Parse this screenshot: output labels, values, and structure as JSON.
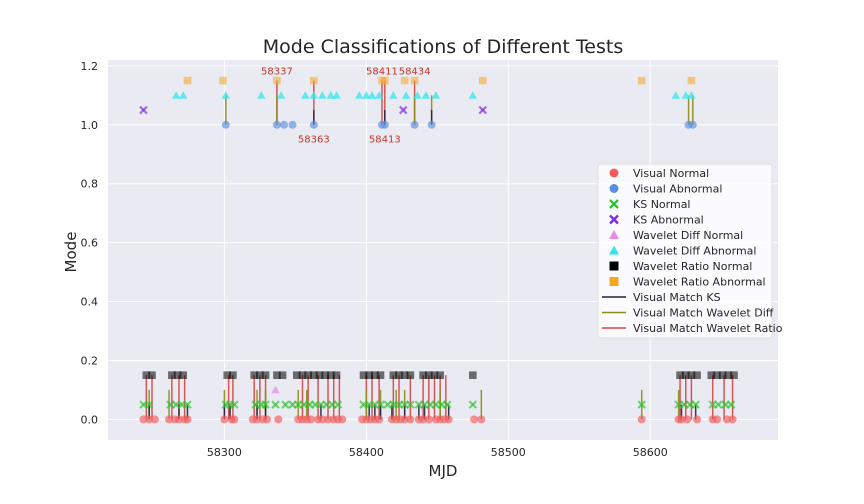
{
  "chart_data": {
    "type": "scatter",
    "title": "Mode Classifications of Different Tests",
    "xlabel": "MJD",
    "ylabel": "Mode",
    "xlim": [
      58218,
      58690
    ],
    "ylim": [
      -0.07,
      1.22
    ],
    "xticks": [
      58300,
      58400,
      58500,
      58600
    ],
    "yticks": [
      0.0,
      0.2,
      0.4,
      0.6,
      0.8,
      1.0,
      1.2
    ],
    "ytick_labels": [
      "0.0",
      "0.2",
      "0.4",
      "0.6",
      "0.8",
      "1.0",
      "1.2"
    ],
    "grid": true,
    "legend_position": "center-right",
    "colors": {
      "plot_bg": "#eaeaf2",
      "grid": "#ffffff",
      "visual_normal": "#f15c5c",
      "visual_abnormal": "#5b8fde",
      "ks_normal": "#2ec42e",
      "ks_abnormal": "#7a2ae0",
      "wavelet_diff_normal": "#e58ce6",
      "wavelet_diff_abnormal": "#33e6ee",
      "wavelet_ratio_normal": "#000000",
      "wavelet_ratio_abnormal": "#f5a623",
      "match_ks": "#222244",
      "match_wd": "#8c8c1a",
      "match_wr": "#d24848"
    },
    "legend": [
      {
        "label": "Visual Normal",
        "marker": "circle",
        "color": "#f15c5c"
      },
      {
        "label": "Visual Abnormal",
        "marker": "circle",
        "color": "#5b8fde"
      },
      {
        "label": "KS Normal",
        "marker": "x",
        "color": "#2ec42e"
      },
      {
        "label": "KS Abnormal",
        "marker": "x",
        "color": "#7a2ae0"
      },
      {
        "label": "Wavelet Diff Normal",
        "marker": "triangle",
        "color": "#e58ce6"
      },
      {
        "label": "Wavelet Diff Abnormal",
        "marker": "triangle",
        "color": "#33e6ee"
      },
      {
        "label": "Wavelet Ratio Normal",
        "marker": "square",
        "color": "#000000"
      },
      {
        "label": "Wavelet Ratio Abnormal",
        "marker": "square",
        "color": "#f5a623"
      },
      {
        "label": "Visual Match KS",
        "marker": "line",
        "color": "#222244"
      },
      {
        "label": "Visual Match Wavelet Diff",
        "marker": "line",
        "color": "#8c8c1a"
      },
      {
        "label": "Visual Match Wavelet Ratio",
        "marker": "line",
        "color": "#d24848"
      }
    ],
    "annotations": [
      {
        "text": "58337",
        "x": 58337,
        "y": 1.17
      },
      {
        "text": "58363",
        "x": 58363,
        "y": 0.94
      },
      {
        "text": "58411",
        "x": 58411,
        "y": 1.17
      },
      {
        "text": "58413",
        "x": 58413,
        "y": 0.94
      },
      {
        "text": "58434",
        "x": 58434,
        "y": 1.17
      }
    ],
    "series": {
      "visual_normal": {
        "y": 0,
        "x": [
          58243,
          58247,
          58251,
          58261,
          58265,
          58268,
          58272,
          58274,
          58300,
          58305,
          58307,
          58320,
          58323,
          58327,
          58330,
          58338,
          58352,
          58355,
          58358,
          58361,
          58366,
          58369,
          58373,
          58377,
          58380,
          58383,
          58397,
          58400,
          58403,
          58406,
          58409,
          58418,
          58421,
          58424,
          58427,
          58431,
          58437,
          58440,
          58444,
          58449,
          58452,
          58455,
          58458,
          58476,
          58481,
          58594,
          58620,
          58622,
          58626,
          58633,
          58644,
          58647,
          58654,
          58658
        ]
      },
      "visual_abnormal": {
        "y": 1,
        "x": [
          58301,
          58337,
          58342,
          58348,
          58363,
          58411,
          58413,
          58434,
          58446,
          58627,
          58630
        ]
      },
      "ks_normal": {
        "y": 0.05,
        "x": [
          58243,
          58247,
          58262,
          58266,
          58270,
          58274,
          58301,
          58304,
          58307,
          58322,
          58326,
          58329,
          58336,
          58343,
          58348,
          58352,
          58356,
          58360,
          58364,
          58368,
          58372,
          58376,
          58380,
          58398,
          58402,
          58406,
          58410,
          58415,
          58419,
          58423,
          58427,
          58431,
          58437,
          58441,
          58445,
          58449,
          58453,
          58457,
          58475,
          58594,
          58620,
          58624,
          58628,
          58632,
          58644,
          58648,
          58653,
          58657
        ]
      },
      "ks_abnormal": {
        "y": 1.05,
        "x": [
          58243,
          58426,
          58482
        ]
      },
      "wavelet_diff_normal": {
        "y": 0.1,
        "x": [
          58336
        ]
      },
      "wavelet_diff_abnormal": {
        "y": 1.1,
        "x": [
          58266,
          58271,
          58301,
          58326,
          58340,
          58357,
          58363,
          58369,
          58375,
          58379,
          58395,
          58400,
          58404,
          58409,
          58419,
          58428,
          58436,
          58442,
          58449,
          58475,
          58618,
          58625,
          58629
        ]
      },
      "wavelet_ratio_normal": {
        "y": 0.15,
        "x": [
          58245,
          58249,
          58263,
          58267,
          58271,
          58302,
          58306,
          58321,
          58325,
          58329,
          58337,
          58341,
          58351,
          58355,
          58359,
          58363,
          58367,
          58371,
          58375,
          58379,
          58398,
          58402,
          58406,
          58410,
          58419,
          58423,
          58427,
          58431,
          58440,
          58444,
          58448,
          58452,
          58475,
          58621,
          58625,
          58629,
          58633,
          58643,
          58647,
          58651,
          58655,
          58659
        ]
      },
      "wavelet_ratio_abnormal": {
        "y": 1.15,
        "x": [
          58274,
          58299,
          58337,
          58363,
          58411,
          58413,
          58427,
          58434,
          58482,
          58594,
          58629
        ]
      },
      "match_ks": {
        "x": [
          58247,
          58268,
          58274,
          58300,
          58304,
          58323,
          58329,
          58363,
          58368,
          58402,
          58406,
          58410,
          58413,
          58418,
          58427,
          58437,
          58441,
          58446,
          58458,
          58622,
          58632
        ]
      },
      "match_wd": {
        "x": [
          58247,
          58261,
          58300,
          58301,
          58323,
          58329,
          58337,
          58352,
          58358,
          58400,
          58410,
          58421,
          58427,
          58434,
          58446,
          58452,
          58481,
          58594,
          58620,
          58627,
          58630
        ]
      },
      "match_wr": {
        "x": [
          58245,
          58249,
          58263,
          58268,
          58272,
          58303,
          58306,
          58321,
          58325,
          58329,
          58337,
          58355,
          58359,
          58363,
          58366,
          58373,
          58377,
          58381,
          58400,
          58404,
          58409,
          58411,
          58413,
          58419,
          58423,
          58431,
          58434,
          58440,
          58444,
          58448,
          58452,
          58456,
          58621,
          58625,
          58629,
          58644,
          58652,
          58658
        ]
      }
    }
  }
}
